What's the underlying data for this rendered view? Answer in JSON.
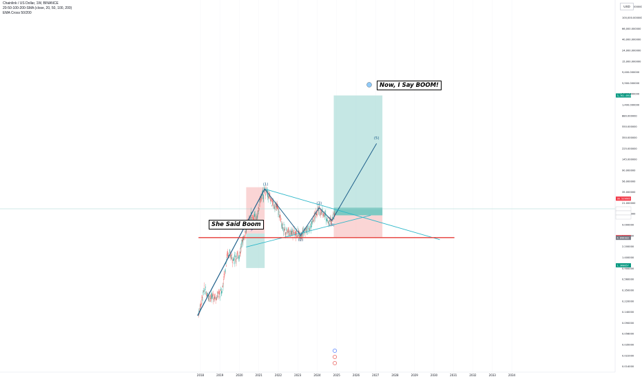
{
  "header": {
    "symbol_line": "Chainlink / US Dollar, 1W, BINANCE",
    "indicator_1": "20-50-100-200-SMA (close, 20, 50, 100, 200)",
    "indicator_2": "EMA Cross 50/200"
  },
  "currency_button": "USD",
  "annotations": {
    "left_callout": "She Said Boom",
    "right_callout": "Now, I Say BOOM!",
    "wave_labels": [
      "(1)",
      "(2)",
      "(3)",
      "(4)",
      "(5)"
    ]
  },
  "price_tags": [
    {
      "text": "3,761.091000",
      "color": "#089981"
    },
    {
      "text": "30.529665",
      "color": "#f23645"
    },
    {
      "text": "18.999782",
      "color": "#ffffff",
      "text_color": "#131722"
    },
    {
      "text": "17:10:16",
      "color": "#ffffff",
      "text_color": "#131722"
    },
    {
      "text": "14.007415",
      "color": "#ffffff",
      "text_color": "#131722"
    },
    {
      "text": "5.058954",
      "color": "#f23645"
    },
    {
      "text": "4.896303",
      "color": "#787b86"
    },
    {
      "text": "1.360857",
      "color": "#089981"
    }
  ],
  "colors": {
    "uptrend_line": "#1e5f8a",
    "triangle_line": "#29b6c8",
    "support_line": "#e53935",
    "long_profit_zone": "#b2dfdb",
    "long_stop_zone": "#f8c7c7",
    "candle_up": "#26a69a",
    "candle_down": "#ef5350",
    "current_price_line": "#9fd6cf"
  },
  "chart_data": {
    "type": "candlestick",
    "title": "Chainlink / US Dollar, 1W, BINANCE",
    "y_scale": "log",
    "y_tick_labels": [
      "200,000,000000",
      "100,000.000000",
      "66,000.000000",
      "40,000.000000",
      "24,000.000000",
      "15,000.000000",
      "9,400.000000",
      "5,900.000000",
      "2,300.000000",
      "1,400.000000",
      "880.000000",
      "550.000000",
      "350.000000",
      "225.000000",
      "145.000000",
      "90.000000",
      "56.000000",
      "35.000000",
      "21.000000",
      "13.000000",
      "9.000000",
      "3.200000",
      "2.200000",
      "1.400000",
      "0.900000",
      "0.560000",
      "0.350000",
      "0.220000",
      "0.140000",
      "0.090000",
      "0.056000",
      "0.035000",
      "0.022000",
      "0.014000"
    ],
    "x_tick_labels": [
      "2018",
      "2019",
      "2020",
      "2021",
      "2022",
      "2023",
      "2024",
      "2025",
      "2026",
      "2027",
      "2028",
      "2029",
      "2030",
      "2031",
      "2032",
      "2033",
      "2034"
    ],
    "price_series": [
      {
        "x": 2017.9,
        "y": 0.14
      },
      {
        "x": 2018.2,
        "y": 0.45
      },
      {
        "x": 2018.5,
        "y": 0.3
      },
      {
        "x": 2018.8,
        "y": 0.32
      },
      {
        "x": 2019.1,
        "y": 0.4
      },
      {
        "x": 2019.4,
        "y": 2.5
      },
      {
        "x": 2019.7,
        "y": 1.8
      },
      {
        "x": 2020.0,
        "y": 2.2
      },
      {
        "x": 2020.2,
        "y": 5.0
      },
      {
        "x": 2020.6,
        "y": 14.0
      },
      {
        "x": 2020.9,
        "y": 12.0
      },
      {
        "x": 2021.1,
        "y": 32.0
      },
      {
        "x": 2021.35,
        "y": 45.0
      },
      {
        "x": 2021.7,
        "y": 25.0
      },
      {
        "x": 2021.95,
        "y": 20.0
      },
      {
        "x": 2022.3,
        "y": 7.0
      },
      {
        "x": 2022.7,
        "y": 6.5
      },
      {
        "x": 2023.1,
        "y": 6.0
      },
      {
        "x": 2023.6,
        "y": 7.5
      },
      {
        "x": 2024.0,
        "y": 17.0
      },
      {
        "x": 2024.2,
        "y": 18.0
      },
      {
        "x": 2024.6,
        "y": 11.0
      },
      {
        "x": 2024.9,
        "y": 14.0
      }
    ],
    "current_price": 18.999782
  }
}
